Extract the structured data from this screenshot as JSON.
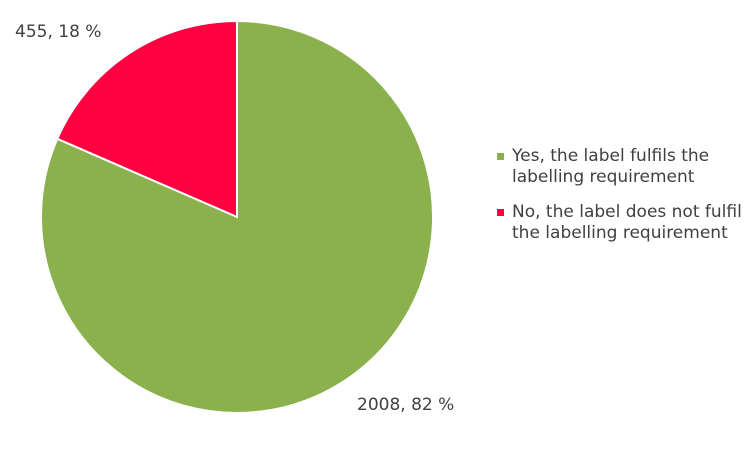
{
  "chart_data": {
    "type": "pie",
    "title": "",
    "categories": [
      "No, the label does not fulfil the labelling requirement",
      "Yes, the label fulfils the labelling requirement"
    ],
    "values": [
      455,
      2008
    ],
    "percent_labels": [
      "455, 18 %",
      "2008, 82 %"
    ],
    "colors": [
      "#ff0040",
      "#8ab14b"
    ],
    "start_angle_deg": 0,
    "direction": "counterclockwise",
    "legend_position": "right"
  },
  "legend": {
    "items": [
      {
        "text": "Yes, the label fulfils the labelling requirement",
        "color": "#8ab14b"
      },
      {
        "text": "No, the label does not fulfil the labelling requirement",
        "color": "#ff0040"
      }
    ]
  }
}
